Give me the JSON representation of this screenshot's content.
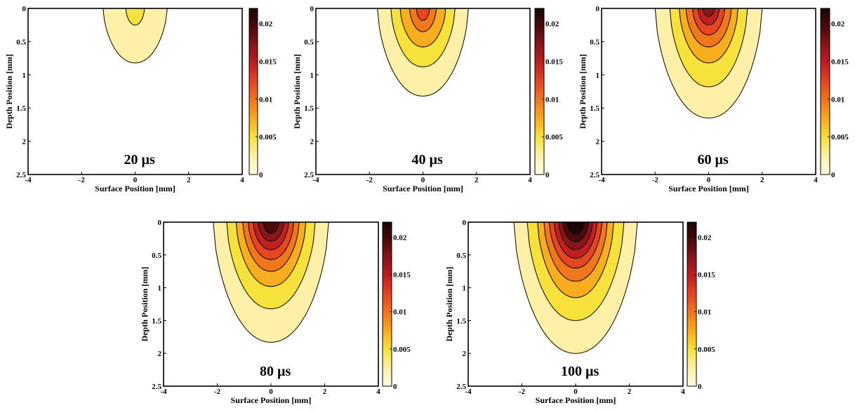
{
  "colormap": [
    "#ffffe6",
    "#fff0a8",
    "#f7e23c",
    "#f7ae1e",
    "#f0781b",
    "#e5461f",
    "#c21f1f",
    "#8c1517",
    "#4d0a0a",
    "#1a0505"
  ],
  "chart_data": [
    {
      "type": "contour",
      "annotation": "20 µs",
      "xlabel": "Surface Position [mm]",
      "ylabel": "Depth Position [mm]",
      "xlim": [
        -4,
        4
      ],
      "ylim": [
        0,
        2.5
      ],
      "y_reversed": true,
      "xticks": [
        "-4",
        "-2",
        "0",
        "2",
        "4"
      ],
      "yticks": [
        "0",
        "0.5",
        "1",
        "1.5",
        "2",
        "2.5"
      ],
      "colorbar": {
        "min": 0,
        "max": 0.022,
        "ticks": [
          "0",
          "0.005",
          "0.01",
          "0.015",
          "0.02"
        ]
      },
      "contours": [
        {
          "level": 0.0022,
          "half_width_mm": 1.2,
          "depth_mm": 0.82
        },
        {
          "level": 0.0044,
          "half_width_mm": 0.35,
          "depth_mm": 0.25
        }
      ]
    },
    {
      "type": "contour",
      "annotation": "40 µs",
      "xlabel": "Surface Position [mm]",
      "ylabel": "Depth Position [mm]",
      "xlim": [
        -4,
        4
      ],
      "ylim": [
        0,
        2.5
      ],
      "y_reversed": true,
      "xticks": [
        "-4",
        "-2",
        "0",
        "2",
        "4"
      ],
      "yticks": [
        "0",
        "0.5",
        "1",
        "1.5",
        "2",
        "2.5"
      ],
      "colorbar": {
        "min": 0,
        "max": 0.022,
        "ticks": [
          "0",
          "0.005",
          "0.01",
          "0.015",
          "0.02"
        ]
      },
      "contours": [
        {
          "level": 0.0022,
          "half_width_mm": 1.7,
          "depth_mm": 1.32
        },
        {
          "level": 0.0044,
          "half_width_mm": 1.2,
          "depth_mm": 0.88
        },
        {
          "level": 0.0066,
          "half_width_mm": 0.85,
          "depth_mm": 0.58
        },
        {
          "level": 0.0088,
          "half_width_mm": 0.5,
          "depth_mm": 0.35
        },
        {
          "level": 0.011,
          "half_width_mm": 0.25,
          "depth_mm": 0.18
        }
      ]
    },
    {
      "type": "contour",
      "annotation": "60 µs",
      "xlabel": "Surface Position [mm]",
      "ylabel": "Depth Position [mm]",
      "xlim": [
        -4,
        4
      ],
      "ylim": [
        0,
        2.5
      ],
      "y_reversed": true,
      "xticks": [
        "-4",
        "-2",
        "0",
        "2",
        "4"
      ],
      "yticks": [
        "0",
        "0.5",
        "1",
        "1.5",
        "2",
        "2.5"
      ],
      "colorbar": {
        "min": 0,
        "max": 0.022,
        "ticks": [
          "0",
          "0.005",
          "0.01",
          "0.015",
          "0.02"
        ]
      },
      "contours": [
        {
          "level": 0.0022,
          "half_width_mm": 2.0,
          "depth_mm": 1.65
        },
        {
          "level": 0.0044,
          "half_width_mm": 1.45,
          "depth_mm": 1.18
        },
        {
          "level": 0.0066,
          "half_width_mm": 1.1,
          "depth_mm": 0.82
        },
        {
          "level": 0.0088,
          "half_width_mm": 0.85,
          "depth_mm": 0.58
        },
        {
          "level": 0.011,
          "half_width_mm": 0.6,
          "depth_mm": 0.4
        },
        {
          "level": 0.0132,
          "half_width_mm": 0.4,
          "depth_mm": 0.25
        },
        {
          "level": 0.0154,
          "half_width_mm": 0.22,
          "depth_mm": 0.12
        }
      ]
    },
    {
      "type": "contour",
      "annotation": "80 µs",
      "xlabel": "Surface Position [mm]",
      "ylabel": "Depth Position [mm]",
      "xlim": [
        -4,
        4
      ],
      "ylim": [
        0,
        2.5
      ],
      "y_reversed": true,
      "xticks": [
        "-4",
        "-2",
        "0",
        "2",
        "4"
      ],
      "yticks": [
        "0",
        "0.5",
        "1",
        "1.5",
        "2",
        "2.5"
      ],
      "colorbar": {
        "min": 0,
        "max": 0.022,
        "ticks": [
          "0",
          "0.005",
          "0.01",
          "0.015",
          "0.02"
        ]
      },
      "contours": [
        {
          "level": 0.0022,
          "half_width_mm": 2.15,
          "depth_mm": 1.83
        },
        {
          "level": 0.0044,
          "half_width_mm": 1.65,
          "depth_mm": 1.32
        },
        {
          "level": 0.0066,
          "half_width_mm": 1.3,
          "depth_mm": 0.98
        },
        {
          "level": 0.0088,
          "half_width_mm": 1.05,
          "depth_mm": 0.75
        },
        {
          "level": 0.011,
          "half_width_mm": 0.85,
          "depth_mm": 0.57
        },
        {
          "level": 0.0132,
          "half_width_mm": 0.66,
          "depth_mm": 0.42
        },
        {
          "level": 0.0154,
          "half_width_mm": 0.48,
          "depth_mm": 0.29
        },
        {
          "level": 0.0176,
          "half_width_mm": 0.3,
          "depth_mm": 0.17
        }
      ]
    },
    {
      "type": "contour",
      "annotation": "100 µs",
      "xlabel": "Surface Position [mm]",
      "ylabel": "Depth Position [mm]",
      "xlim": [
        -4,
        4
      ],
      "ylim": [
        0,
        2.5
      ],
      "y_reversed": true,
      "xticks": [
        "-4",
        "-2",
        "0",
        "2",
        "4"
      ],
      "yticks": [
        "0",
        "0.5",
        "1",
        "1.5",
        "2",
        "2.5"
      ],
      "colorbar": {
        "min": 0,
        "max": 0.022,
        "ticks": [
          "0",
          "0.005",
          "0.01",
          "0.015",
          "0.02"
        ]
      },
      "contours": [
        {
          "level": 0.0022,
          "half_width_mm": 2.3,
          "depth_mm": 2.0
        },
        {
          "level": 0.0044,
          "half_width_mm": 1.8,
          "depth_mm": 1.5
        },
        {
          "level": 0.0066,
          "half_width_mm": 1.42,
          "depth_mm": 1.15
        },
        {
          "level": 0.0088,
          "half_width_mm": 1.18,
          "depth_mm": 0.9
        },
        {
          "level": 0.011,
          "half_width_mm": 0.98,
          "depth_mm": 0.7
        },
        {
          "level": 0.0132,
          "half_width_mm": 0.8,
          "depth_mm": 0.55
        },
        {
          "level": 0.0154,
          "half_width_mm": 0.63,
          "depth_mm": 0.42
        },
        {
          "level": 0.0176,
          "half_width_mm": 0.48,
          "depth_mm": 0.3
        },
        {
          "level": 0.0198,
          "half_width_mm": 0.32,
          "depth_mm": 0.18
        }
      ]
    }
  ]
}
